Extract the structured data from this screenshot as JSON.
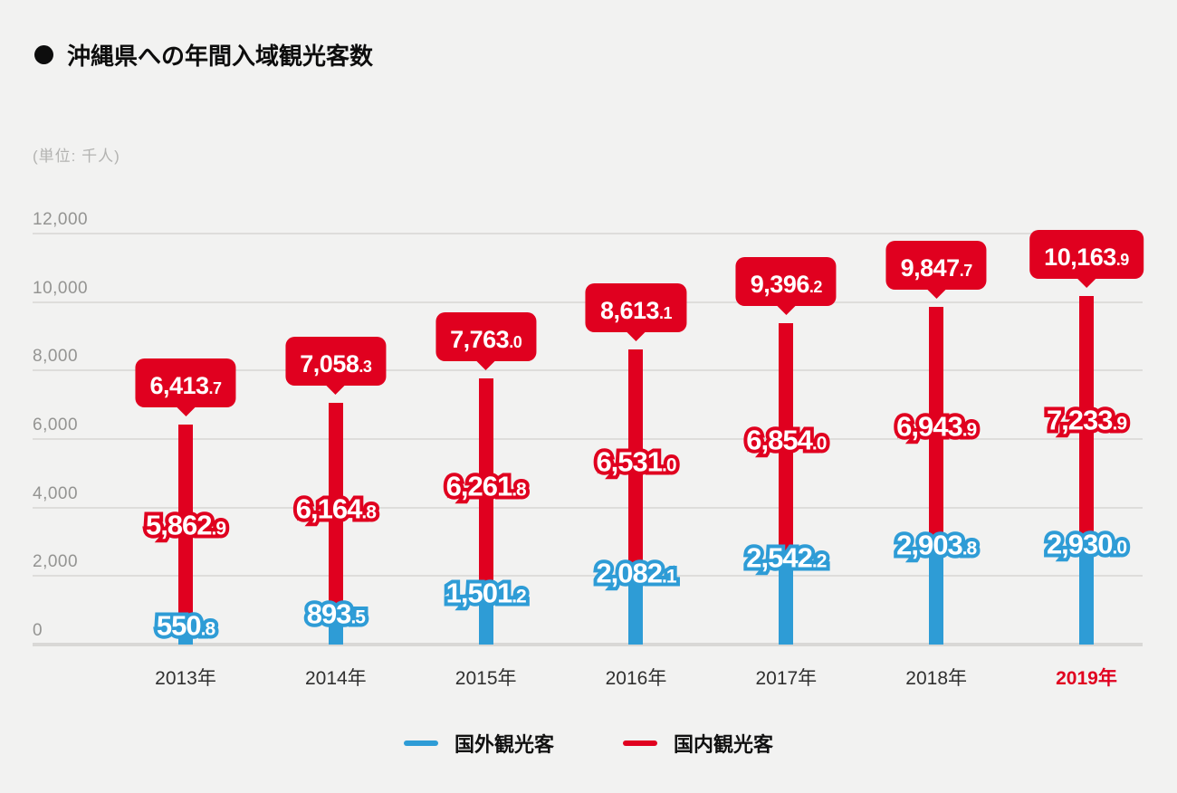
{
  "header": {
    "bullet": "●",
    "title": "沖縄県への年間入域観光客数",
    "unit_label": "(単位: 千人)"
  },
  "legend": {
    "items": [
      {
        "label": "国外観光客",
        "color": "#2e9cd6"
      },
      {
        "label": "国内観光客",
        "color": "#e0001f"
      }
    ]
  },
  "axis": {
    "ytick_labels": [
      "0",
      "2,000",
      "4,000",
      "6,000",
      "8,000",
      "10,000",
      "12,000"
    ],
    "highlighted_x_label": "2019年"
  },
  "colors": {
    "domestic_red": "#e0001f",
    "foreign_blue": "#2e9cd6",
    "background": "#f2f2f1",
    "gridline": "#dedddb",
    "axis_text": "#949492",
    "year_text": "#303030"
  },
  "chart_data": {
    "type": "bar",
    "stacked": true,
    "title": "沖縄県への年間入域観光客数",
    "unit": "千人",
    "categories": [
      "2013年",
      "2014年",
      "2015年",
      "2016年",
      "2017年",
      "2018年",
      "2019年"
    ],
    "highlighted_category": "2019年",
    "series": [
      {
        "name": "国外観光客",
        "color": "#2e9cd6",
        "values": [
          550.8,
          893.5,
          1501.2,
          2082.1,
          2542.2,
          2903.8,
          2930.0
        ]
      },
      {
        "name": "国内観光客",
        "color": "#e0001f",
        "values": [
          5862.9,
          6164.8,
          6261.8,
          6531.0,
          6854.0,
          6943.9,
          7233.9
        ]
      }
    ],
    "totals": [
      6413.7,
      7058.3,
      7763.0,
      8613.1,
      9396.2,
      9847.7,
      10163.9
    ],
    "yticks": [
      0,
      2000,
      4000,
      6000,
      8000,
      10000,
      12000
    ],
    "ylim": [
      0,
      12000
    ],
    "grid": true,
    "legend_position": "bottom"
  }
}
